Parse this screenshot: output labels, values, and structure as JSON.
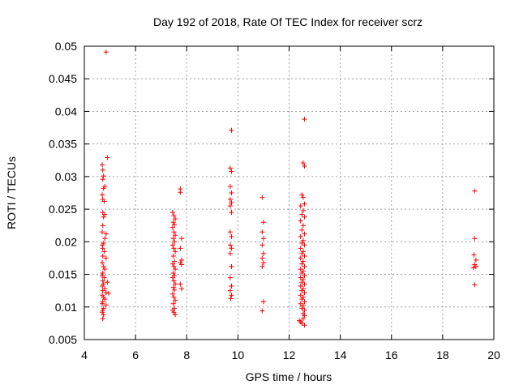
{
  "chart_data": {
    "type": "scatter",
    "title": "Day 192 of 2018, Rate Of TEC Index for receiver scrz",
    "xlabel": "GPS time / hours",
    "ylabel": "ROTI / TECUs",
    "xlim": [
      4,
      20
    ],
    "ylim": [
      0.005,
      0.05
    ],
    "x_ticks": [
      4,
      6,
      8,
      10,
      12,
      14,
      16,
      18,
      20
    ],
    "x_tick_labels": [
      "4",
      "6",
      "8",
      "10",
      "12",
      "14",
      "16",
      "18",
      "20"
    ],
    "y_ticks": [
      0.005,
      0.01,
      0.015,
      0.02,
      0.025,
      0.03,
      0.035,
      0.04,
      0.045,
      0.05
    ],
    "y_tick_labels": [
      "0.005",
      "0.01",
      "0.015",
      "0.02",
      "0.025",
      "0.03",
      "0.035",
      "0.04",
      "0.045",
      "0.05"
    ],
    "grid": true,
    "marker": "+",
    "color": "#ff0000",
    "series": [
      {
        "points": [
          [
            4.85,
            0.0491
          ],
          [
            4.9,
            0.0329
          ],
          [
            4.7,
            0.0318
          ],
          [
            4.72,
            0.031
          ],
          [
            4.75,
            0.0301
          ],
          [
            4.72,
            0.0296
          ],
          [
            4.8,
            0.0285
          ],
          [
            4.75,
            0.0282
          ],
          [
            4.7,
            0.0272
          ],
          [
            4.72,
            0.0265
          ],
          [
            4.78,
            0.0262
          ],
          [
            4.72,
            0.0245
          ],
          [
            4.8,
            0.0242
          ],
          [
            4.75,
            0.0238
          ],
          [
            4.72,
            0.0225
          ],
          [
            4.7,
            0.0215
          ],
          [
            4.85,
            0.0212
          ],
          [
            4.8,
            0.0205
          ],
          [
            4.75,
            0.0198
          ],
          [
            4.7,
            0.0195
          ],
          [
            4.72,
            0.019
          ],
          [
            4.78,
            0.0185
          ],
          [
            4.72,
            0.0178
          ],
          [
            4.85,
            0.0175
          ],
          [
            4.7,
            0.0168
          ],
          [
            4.75,
            0.0162
          ],
          [
            4.8,
            0.0158
          ],
          [
            4.72,
            0.0152
          ],
          [
            4.7,
            0.0148
          ],
          [
            4.78,
            0.0145
          ],
          [
            4.72,
            0.014
          ],
          [
            4.9,
            0.0138
          ],
          [
            4.75,
            0.0135
          ],
          [
            4.7,
            0.0132
          ],
          [
            4.8,
            0.0128
          ],
          [
            4.72,
            0.0125
          ],
          [
            4.85,
            0.0122
          ],
          [
            4.95,
            0.0121
          ],
          [
            4.7,
            0.0118
          ],
          [
            4.75,
            0.0115
          ],
          [
            4.8,
            0.0112
          ],
          [
            4.72,
            0.0108
          ],
          [
            4.7,
            0.0105
          ],
          [
            4.85,
            0.0103
          ],
          [
            4.75,
            0.0098
          ],
          [
            4.72,
            0.0095
          ],
          [
            4.7,
            0.0092
          ],
          [
            4.75,
            0.0088
          ],
          [
            4.72,
            0.0082
          ],
          [
            7.45,
            0.0245
          ],
          [
            7.5,
            0.024
          ],
          [
            7.55,
            0.0235
          ],
          [
            7.48,
            0.023
          ],
          [
            7.52,
            0.0226
          ],
          [
            7.45,
            0.0222
          ],
          [
            7.5,
            0.0215
          ],
          [
            7.55,
            0.021
          ],
          [
            7.48,
            0.0205
          ],
          [
            7.52,
            0.02
          ],
          [
            7.45,
            0.0195
          ],
          [
            7.5,
            0.019
          ],
          [
            7.55,
            0.0185
          ],
          [
            7.48,
            0.0178
          ],
          [
            7.52,
            0.017
          ],
          [
            7.45,
            0.0166
          ],
          [
            7.5,
            0.0162
          ],
          [
            7.55,
            0.0158
          ],
          [
            7.48,
            0.0152
          ],
          [
            7.52,
            0.0148
          ],
          [
            7.45,
            0.0145
          ],
          [
            7.5,
            0.014
          ],
          [
            7.55,
            0.0135
          ],
          [
            7.48,
            0.013
          ],
          [
            7.52,
            0.0126
          ],
          [
            7.45,
            0.012
          ],
          [
            7.5,
            0.0115
          ],
          [
            7.55,
            0.011
          ],
          [
            7.48,
            0.0105
          ],
          [
            7.52,
            0.0098
          ],
          [
            7.45,
            0.0095
          ],
          [
            7.5,
            0.0092
          ],
          [
            7.55,
            0.0088
          ],
          [
            7.75,
            0.0281
          ],
          [
            7.75,
            0.0276
          ],
          [
            7.8,
            0.0205
          ],
          [
            7.75,
            0.019
          ],
          [
            7.8,
            0.0172
          ],
          [
            7.75,
            0.0168
          ],
          [
            7.8,
            0.0165
          ],
          [
            7.75,
            0.0135
          ],
          [
            7.8,
            0.0128
          ],
          [
            9.75,
            0.0371
          ],
          [
            9.7,
            0.0313
          ],
          [
            9.75,
            0.0308
          ],
          [
            9.7,
            0.0285
          ],
          [
            9.75,
            0.0275
          ],
          [
            9.7,
            0.0265
          ],
          [
            9.75,
            0.026
          ],
          [
            9.7,
            0.0255
          ],
          [
            9.75,
            0.0245
          ],
          [
            9.7,
            0.0215
          ],
          [
            9.75,
            0.0208
          ],
          [
            9.7,
            0.0195
          ],
          [
            9.75,
            0.019
          ],
          [
            9.7,
            0.0182
          ],
          [
            9.75,
            0.0162
          ],
          [
            9.7,
            0.0145
          ],
          [
            9.75,
            0.0132
          ],
          [
            9.7,
            0.0125
          ],
          [
            9.75,
            0.0118
          ],
          [
            9.72,
            0.0113
          ],
          [
            10.95,
            0.0268
          ],
          [
            11.0,
            0.023
          ],
          [
            10.95,
            0.0215
          ],
          [
            11.0,
            0.0205
          ],
          [
            10.95,
            0.0195
          ],
          [
            11.0,
            0.0182
          ],
          [
            10.95,
            0.0175
          ],
          [
            11.0,
            0.0168
          ],
          [
            10.95,
            0.0162
          ],
          [
            11.0,
            0.0108
          ],
          [
            10.95,
            0.0094
          ],
          [
            12.6,
            0.0388
          ],
          [
            12.55,
            0.0321
          ],
          [
            12.6,
            0.0316
          ],
          [
            12.5,
            0.0272
          ],
          [
            12.55,
            0.0268
          ],
          [
            12.6,
            0.0258
          ],
          [
            12.45,
            0.0255
          ],
          [
            12.55,
            0.0248
          ],
          [
            12.5,
            0.0242
          ],
          [
            12.6,
            0.0238
          ],
          [
            12.45,
            0.0232
          ],
          [
            12.55,
            0.0225
          ],
          [
            12.5,
            0.0218
          ],
          [
            12.6,
            0.0212
          ],
          [
            12.45,
            0.0208
          ],
          [
            12.55,
            0.0202
          ],
          [
            12.5,
            0.0198
          ],
          [
            12.6,
            0.0195
          ],
          [
            12.45,
            0.019
          ],
          [
            12.55,
            0.0185
          ],
          [
            12.5,
            0.0182
          ],
          [
            12.6,
            0.0178
          ],
          [
            12.45,
            0.0175
          ],
          [
            12.55,
            0.017
          ],
          [
            12.5,
            0.0166
          ],
          [
            12.6,
            0.0162
          ],
          [
            12.45,
            0.0158
          ],
          [
            12.55,
            0.0155
          ],
          [
            12.5,
            0.0152
          ],
          [
            12.6,
            0.0148
          ],
          [
            12.45,
            0.0145
          ],
          [
            12.55,
            0.0142
          ],
          [
            12.5,
            0.0138
          ],
          [
            12.6,
            0.0135
          ],
          [
            12.45,
            0.0132
          ],
          [
            12.55,
            0.0128
          ],
          [
            12.5,
            0.0125
          ],
          [
            12.6,
            0.0122
          ],
          [
            12.45,
            0.0118
          ],
          [
            12.55,
            0.0115
          ],
          [
            12.5,
            0.0112
          ],
          [
            12.6,
            0.0108
          ],
          [
            12.45,
            0.0105
          ],
          [
            12.55,
            0.0102
          ],
          [
            12.5,
            0.0098
          ],
          [
            12.6,
            0.0095
          ],
          [
            12.55,
            0.009
          ],
          [
            12.6,
            0.0087
          ],
          [
            12.4,
            0.0079
          ],
          [
            12.45,
            0.0077
          ],
          [
            12.55,
            0.0082
          ],
          [
            12.5,
            0.0075
          ],
          [
            12.6,
            0.0072
          ],
          [
            19.25,
            0.0278
          ],
          [
            19.25,
            0.0205
          ],
          [
            19.22,
            0.018
          ],
          [
            19.3,
            0.0172
          ],
          [
            19.25,
            0.0165
          ],
          [
            19.2,
            0.016
          ],
          [
            19.3,
            0.0162
          ],
          [
            19.25,
            0.0134
          ]
        ]
      }
    ]
  }
}
